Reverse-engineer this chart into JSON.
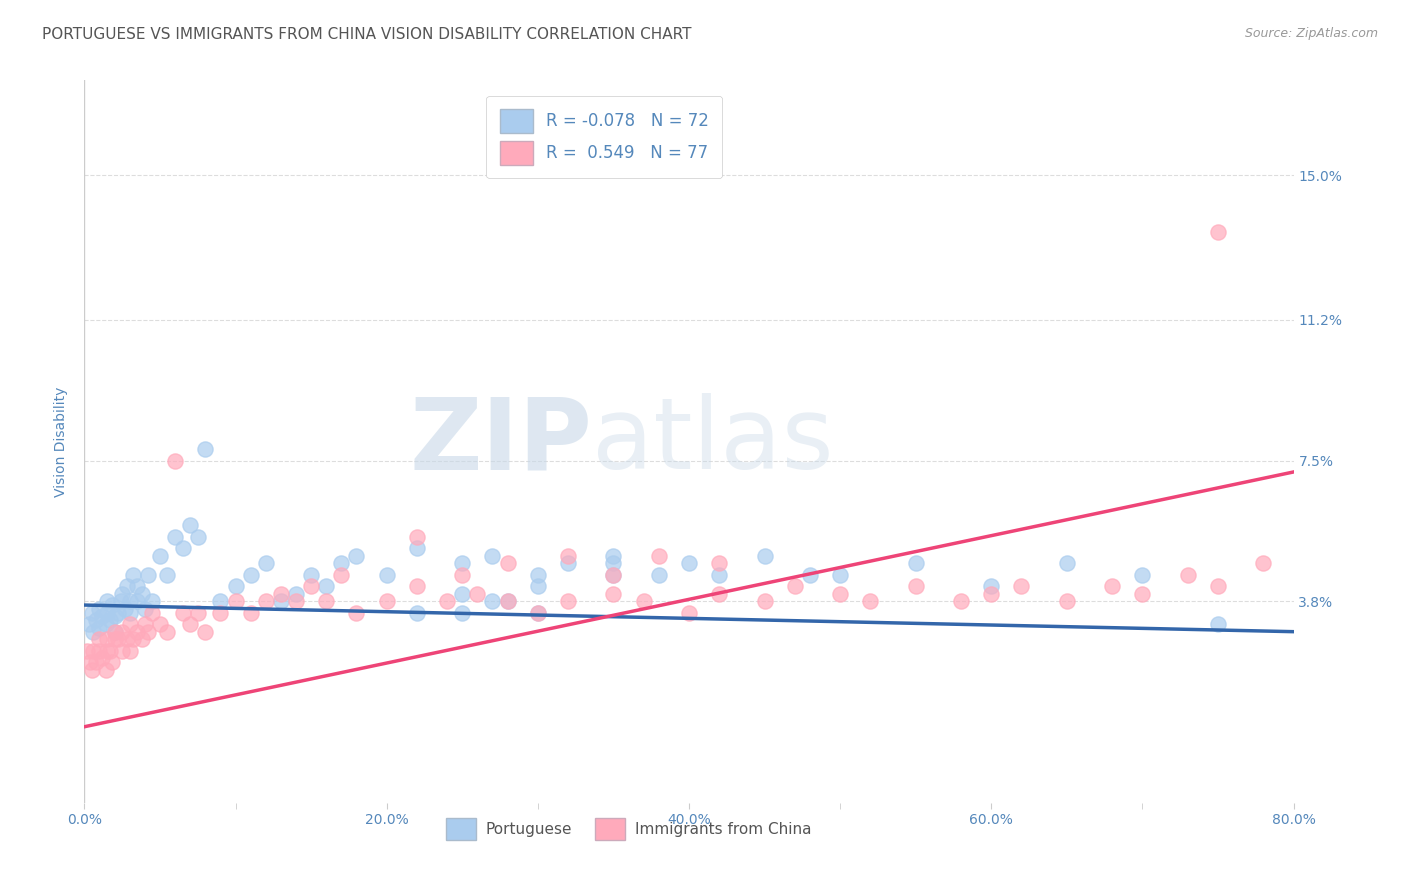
{
  "title": "PORTUGUESE VS IMMIGRANTS FROM CHINA VISION DISABILITY CORRELATION CHART",
  "source": "Source: ZipAtlas.com",
  "ylabel": "Vision Disability",
  "xlim": [
    0.0,
    80.0
  ],
  "ylim": [
    -1.5,
    17.5
  ],
  "yticks": [
    3.8,
    7.5,
    11.2,
    15.0
  ],
  "xticks": [
    0.0,
    20.0,
    40.0,
    60.0,
    80.0
  ],
  "xtick_minor": [
    10.0,
    30.0,
    50.0,
    70.0
  ],
  "background_color": "#ffffff",
  "grid_color": "#dddddd",
  "axis_color": "#5588bb",
  "color_blue": "#aaccee",
  "color_pink": "#ffaabb",
  "line_blue": "#3366aa",
  "line_pink": "#ee4477",
  "scatter_blue_x": [
    0.3,
    0.5,
    0.6,
    0.8,
    1.0,
    1.0,
    1.2,
    1.4,
    1.5,
    1.5,
    1.7,
    1.8,
    2.0,
    2.0,
    2.2,
    2.4,
    2.5,
    2.7,
    2.8,
    3.0,
    3.0,
    3.2,
    3.5,
    3.5,
    3.8,
    4.0,
    4.2,
    4.5,
    5.0,
    5.5,
    6.0,
    6.5,
    7.0,
    7.5,
    8.0,
    9.0,
    10.0,
    11.0,
    12.0,
    13.0,
    14.0,
    15.0,
    16.0,
    17.0,
    18.0,
    20.0,
    22.0,
    25.0,
    27.0,
    30.0,
    32.0,
    35.0,
    38.0,
    40.0,
    42.0,
    45.0,
    48.0,
    50.0,
    55.0,
    60.0,
    65.0,
    70.0,
    75.0,
    22.0,
    25.0,
    27.0,
    30.0,
    35.0,
    30.0,
    35.0,
    28.0,
    25.0
  ],
  "scatter_blue_y": [
    3.2,
    3.5,
    3.0,
    3.3,
    3.6,
    3.1,
    3.4,
    3.2,
    3.8,
    3.5,
    3.3,
    3.7,
    3.4,
    3.0,
    3.5,
    3.8,
    4.0,
    3.6,
    4.2,
    3.5,
    3.8,
    4.5,
    3.8,
    4.2,
    4.0,
    3.6,
    4.5,
    3.8,
    5.0,
    4.5,
    5.5,
    5.2,
    5.8,
    5.5,
    7.8,
    3.8,
    4.2,
    4.5,
    4.8,
    3.8,
    4.0,
    4.5,
    4.2,
    4.8,
    5.0,
    4.5,
    5.2,
    4.8,
    5.0,
    4.5,
    4.8,
    5.0,
    4.5,
    4.8,
    4.5,
    5.0,
    4.5,
    4.5,
    4.8,
    4.2,
    4.8,
    4.5,
    3.2,
    3.5,
    4.0,
    3.8,
    3.5,
    4.5,
    4.2,
    4.8,
    3.8,
    3.5
  ],
  "scatter_pink_x": [
    0.2,
    0.4,
    0.5,
    0.6,
    0.8,
    1.0,
    1.0,
    1.2,
    1.4,
    1.5,
    1.5,
    1.7,
    1.8,
    2.0,
    2.0,
    2.2,
    2.5,
    2.5,
    2.8,
    3.0,
    3.0,
    3.2,
    3.5,
    3.8,
    4.0,
    4.2,
    4.5,
    5.0,
    5.5,
    6.0,
    6.5,
    7.0,
    7.5,
    8.0,
    9.0,
    10.0,
    11.0,
    12.0,
    13.0,
    14.0,
    15.0,
    16.0,
    17.0,
    18.0,
    20.0,
    22.0,
    24.0,
    26.0,
    28.0,
    30.0,
    32.0,
    35.0,
    37.0,
    40.0,
    42.0,
    45.0,
    47.0,
    50.0,
    52.0,
    55.0,
    58.0,
    60.0,
    62.0,
    65.0,
    68.0,
    70.0,
    73.0,
    75.0,
    78.0,
    22.0,
    25.0,
    28.0,
    32.0,
    35.0,
    38.0,
    42.0,
    75.0
  ],
  "scatter_pink_y": [
    2.5,
    2.2,
    2.0,
    2.5,
    2.2,
    2.8,
    2.5,
    2.3,
    2.0,
    2.5,
    2.8,
    2.5,
    2.2,
    2.8,
    3.0,
    2.8,
    2.5,
    3.0,
    2.8,
    2.5,
    3.2,
    2.8,
    3.0,
    2.8,
    3.2,
    3.0,
    3.5,
    3.2,
    3.0,
    7.5,
    3.5,
    3.2,
    3.5,
    3.0,
    3.5,
    3.8,
    3.5,
    3.8,
    4.0,
    3.8,
    4.2,
    3.8,
    4.5,
    3.5,
    3.8,
    4.2,
    3.8,
    4.0,
    3.8,
    3.5,
    3.8,
    4.0,
    3.8,
    3.5,
    4.0,
    3.8,
    4.2,
    4.0,
    3.8,
    4.2,
    3.8,
    4.0,
    4.2,
    3.8,
    4.2,
    4.0,
    4.5,
    4.2,
    4.8,
    5.5,
    4.5,
    4.8,
    5.0,
    4.5,
    5.0,
    4.8,
    13.5
  ],
  "reg_blue_x0": 0.0,
  "reg_blue_x1": 80.0,
  "reg_blue_y0": 3.7,
  "reg_blue_y1": 3.0,
  "reg_pink_x0": 0.0,
  "reg_pink_x1": 80.0,
  "reg_pink_y0": 0.5,
  "reg_pink_y1": 7.2,
  "legend_R1": "R = -0.078",
  "legend_N1": "N = 72",
  "legend_R2": "R =  0.549",
  "legend_N2": "N = 77",
  "watermark_zip": "ZIP",
  "watermark_atlas": "atlas",
  "title_fontsize": 11,
  "label_fontsize": 10
}
